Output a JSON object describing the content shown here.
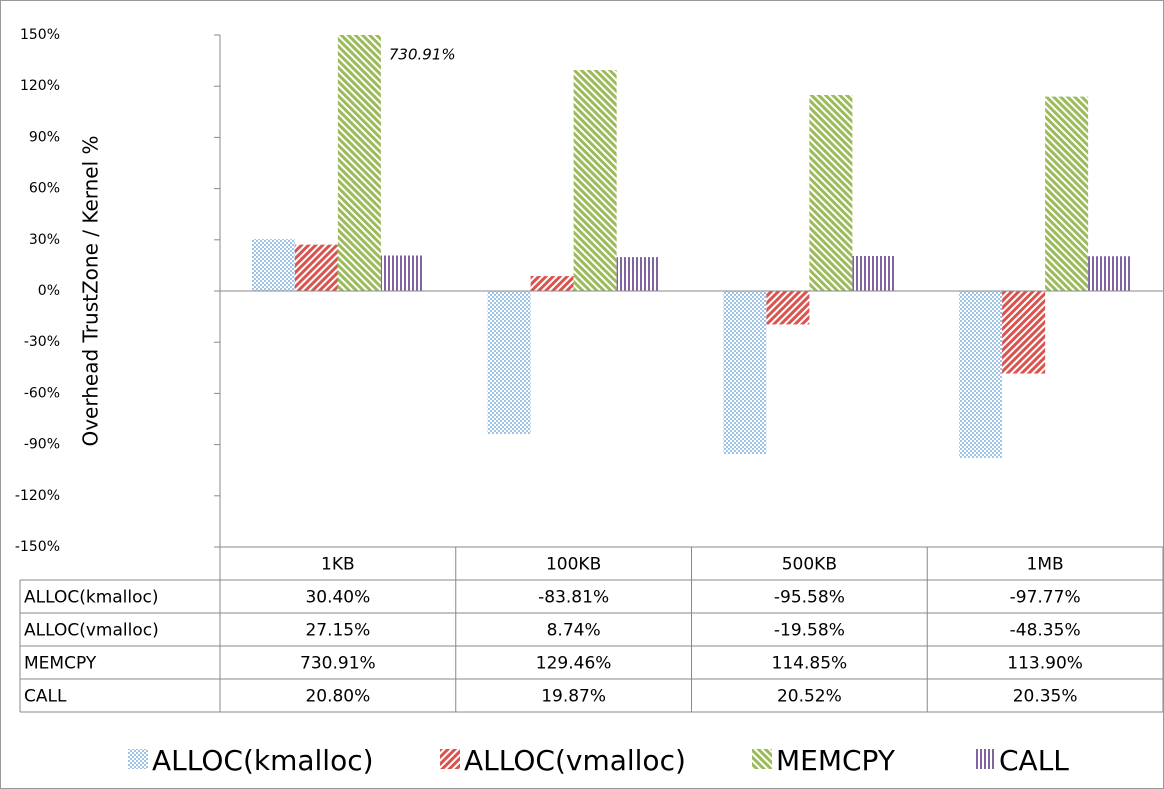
{
  "chart_data": {
    "type": "bar",
    "ylabel": "Overhead TrustZone / Kernel %",
    "categories": [
      "1KB",
      "100KB",
      "500KB",
      "1MB"
    ],
    "series": [
      {
        "name": "ALLOC(kmalloc)",
        "color": "#9dc3e6",
        "values": [
          30.4,
          -83.81,
          -95.58,
          -97.77
        ],
        "value_labels": [
          "30.40%",
          "-83.81%",
          "-95.58%",
          "-97.77%"
        ]
      },
      {
        "name": "ALLOC(vmalloc)",
        "color": "#d9534f",
        "values": [
          27.15,
          8.74,
          -19.58,
          -48.35
        ],
        "value_labels": [
          "27.15%",
          "8.74%",
          "-19.58%",
          "-48.35%"
        ]
      },
      {
        "name": "MEMCPY",
        "color": "#9bbb59",
        "values": [
          730.91,
          129.46,
          114.85,
          113.9
        ],
        "value_labels": [
          "730.91%",
          "129.46%",
          "114.85%",
          "113.90%"
        ]
      },
      {
        "name": "CALL",
        "color": "#8064a2",
        "values": [
          20.8,
          19.87,
          20.52,
          20.35
        ],
        "value_labels": [
          "20.80%",
          "19.87%",
          "20.52%",
          "20.35%"
        ]
      }
    ],
    "annotation": "730.91%",
    "ylim": [
      -150,
      150
    ],
    "yticks": [
      {
        "value": -150,
        "label": "-150%"
      },
      {
        "value": -120,
        "label": "-120%"
      },
      {
        "value": -90,
        "label": "-90%"
      },
      {
        "value": -60,
        "label": "-60%"
      },
      {
        "value": -30,
        "label": "-30%"
      },
      {
        "value": 0,
        "label": "0%"
      },
      {
        "value": 30,
        "label": "30%"
      },
      {
        "value": 60,
        "label": "60%"
      },
      {
        "value": 90,
        "label": "90%"
      },
      {
        "value": 120,
        "label": "120%"
      },
      {
        "value": 150,
        "label": "150%"
      }
    ],
    "grid": false,
    "legend": "bottom"
  }
}
